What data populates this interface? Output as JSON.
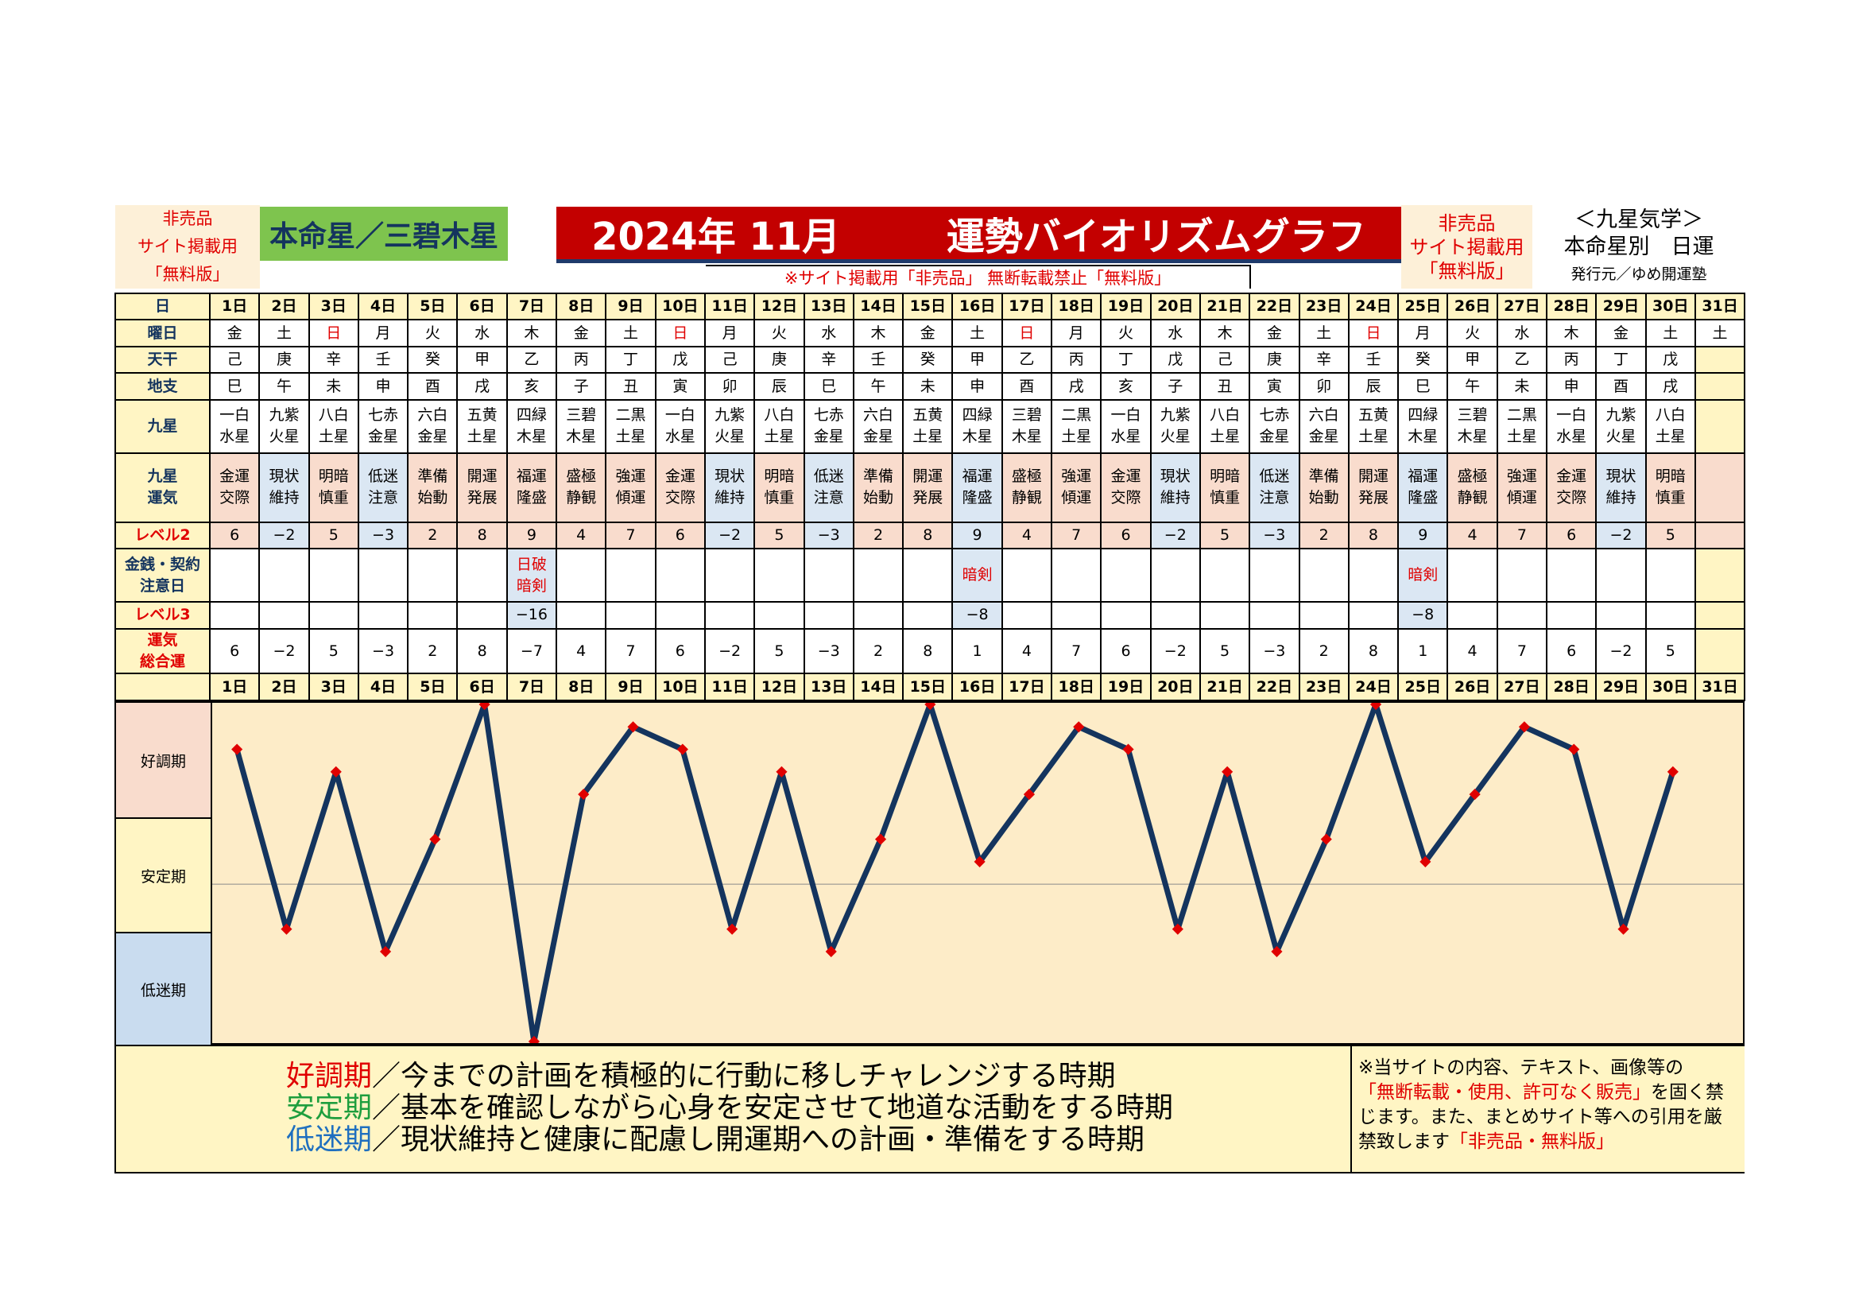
{
  "header": {
    "left_tag": [
      "非売品",
      "サイト掲載用",
      "「無料版」"
    ],
    "honmei": "本命星／三碧木星",
    "title": "2024年 11月        運勢バイオリズムグラフ",
    "notice": "※サイト掲載用「非売品」 無断転載禁止「無料版」",
    "right_tag": [
      "非売品",
      "サイト掲載用",
      "「無料版」"
    ],
    "kyusei": [
      "＜九星気学＞",
      "本命星別　日運",
      "発行元／ゆめ開運塾"
    ]
  },
  "row_labels": {
    "day": "日",
    "weekday": "曜日",
    "tenkan": "天干",
    "chishi": "地支",
    "star": "九星",
    "unki": "九星\n運気",
    "level2": "レベル2",
    "kinsen": "金銭・契約\n注意日",
    "level3": "レベル3",
    "sogo": "運気\n総合運"
  },
  "days": [
    "1日",
    "2日",
    "3日",
    "4日",
    "5日",
    "6日",
    "7日",
    "8日",
    "9日",
    "10日",
    "11日",
    "12日",
    "13日",
    "14日",
    "15日",
    "16日",
    "17日",
    "18日",
    "19日",
    "20日",
    "21日",
    "22日",
    "23日",
    "24日",
    "25日",
    "26日",
    "27日",
    "28日",
    "29日",
    "30日",
    "31日"
  ],
  "weekdays": [
    "金",
    "土",
    "日",
    "月",
    "火",
    "水",
    "木",
    "金",
    "土",
    "日",
    "月",
    "火",
    "水",
    "木",
    "金",
    "土",
    "日",
    "月",
    "火",
    "水",
    "木",
    "金",
    "土",
    "日",
    "月",
    "火",
    "水",
    "木",
    "金",
    "土",
    "土"
  ],
  "tenkan": [
    "己",
    "庚",
    "辛",
    "壬",
    "癸",
    "甲",
    "乙",
    "丙",
    "丁",
    "戊",
    "己",
    "庚",
    "辛",
    "壬",
    "癸",
    "甲",
    "乙",
    "丙",
    "丁",
    "戊",
    "己",
    "庚",
    "辛",
    "壬",
    "癸",
    "甲",
    "乙",
    "丙",
    "丁",
    "戊",
    ""
  ],
  "chishi": [
    "巳",
    "午",
    "未",
    "申",
    "酉",
    "戌",
    "亥",
    "子",
    "丑",
    "寅",
    "卯",
    "辰",
    "巳",
    "午",
    "未",
    "申",
    "酉",
    "戌",
    "亥",
    "子",
    "丑",
    "寅",
    "卯",
    "辰",
    "巳",
    "午",
    "未",
    "申",
    "酉",
    "戌",
    ""
  ],
  "stars": [
    "一白水星",
    "九紫火星",
    "八白土星",
    "七赤金星",
    "六白金星",
    "五黄土星",
    "四緑木星",
    "三碧木星",
    "二黒土星",
    "一白水星",
    "九紫火星",
    "八白土星",
    "七赤金星",
    "六白金星",
    "五黄土星",
    "四緑木星",
    "三碧木星",
    "二黒土星",
    "一白水星",
    "九紫火星",
    "八白土星",
    "七赤金星",
    "六白金星",
    "五黄土星",
    "四緑木星",
    "三碧木星",
    "二黒土星",
    "一白水星",
    "九紫火星",
    "八白土星",
    ""
  ],
  "unki": [
    "金運交際",
    "現状維持",
    "明暗慎重",
    "低迷注意",
    "準備始動",
    "開運発展",
    "福運隆盛",
    "盛極静観",
    "強運傾運",
    "金運交際",
    "現状維持",
    "明暗慎重",
    "低迷注意",
    "準備始動",
    "開運発展",
    "福運隆盛",
    "盛極静観",
    "強運傾運",
    "金運交際",
    "現状維持",
    "明暗慎重",
    "低迷注意",
    "準備始動",
    "開運発展",
    "福運隆盛",
    "盛極静観",
    "強運傾運",
    "金運交際",
    "現状維持",
    "明暗慎重",
    ""
  ],
  "level2": [
    "6",
    "−2",
    "5",
    "−3",
    "2",
    "8",
    "9",
    "4",
    "7",
    "6",
    "−2",
    "5",
    "−3",
    "2",
    "8",
    "9",
    "4",
    "7",
    "6",
    "−2",
    "5",
    "−3",
    "2",
    "8",
    "9",
    "4",
    "7",
    "6",
    "−2",
    "5",
    ""
  ],
  "kinsen": [
    "",
    "",
    "",
    "",
    "",
    "",
    "日破\n暗剣",
    "",
    "",
    "",
    "",
    "",
    "",
    "",
    "",
    "暗剣",
    "",
    "",
    "",
    "",
    "",
    "",
    "",
    "",
    "暗剣",
    "",
    "",
    "",
    "",
    "",
    ""
  ],
  "level3": [
    "",
    "",
    "",
    "",
    "",
    "",
    "−16",
    "",
    "",
    "",
    "",
    "",
    "",
    "",
    "",
    "−8",
    "",
    "",
    "",
    "",
    "",
    "",
    "",
    "",
    "−8",
    "",
    "",
    "",
    "",
    "",
    ""
  ],
  "sogo": [
    "6",
    "−2",
    "5",
    "−3",
    "2",
    "8",
    "−7",
    "4",
    "7",
    "6",
    "−2",
    "5",
    "−3",
    "2",
    "8",
    "1",
    "4",
    "7",
    "6",
    "−2",
    "5",
    "−3",
    "2",
    "8",
    "1",
    "4",
    "7",
    "6",
    "−2",
    "5",
    ""
  ],
  "zones": {
    "good": "好調期",
    "stable": "安定期",
    "low": "低迷期"
  },
  "legend": [
    {
      "term": "好調期",
      "color": "#e00000",
      "text": "／今までの計画を積極的に行動に移しチャレンジする時期"
    },
    {
      "term": "安定期",
      "color": "#1e9e3e",
      "text": "／基本を確認しながら心身を安定させて地道な活動をする時期"
    },
    {
      "term": "低迷期",
      "color": "#1f6fbf",
      "text": "／現状維持と健康に配慮し開運期への計画・準備をする時期"
    }
  ],
  "copyright": {
    "line1": "※当サイトの内容、テキスト、画像等の",
    "red1": "「無断転載・使用、許可なく販売」",
    "line2": "を固く禁じます。また、まとめサイト等への引用を厳禁致します",
    "red2": "「非売品・無料版」"
  },
  "chart_data": {
    "type": "line",
    "categories": [
      "1日",
      "2日",
      "3日",
      "4日",
      "5日",
      "6日",
      "7日",
      "8日",
      "9日",
      "10日",
      "11日",
      "12日",
      "13日",
      "14日",
      "15日",
      "16日",
      "17日",
      "18日",
      "19日",
      "20日",
      "21日",
      "22日",
      "23日",
      "24日",
      "25日",
      "26日",
      "27日",
      "28日",
      "29日",
      "30日"
    ],
    "values": [
      6,
      -2,
      5,
      -3,
      2,
      8,
      -7,
      4,
      7,
      6,
      -2,
      5,
      -3,
      2,
      8,
      1,
      4,
      7,
      6,
      -2,
      5,
      -3,
      2,
      8,
      1,
      4,
      7,
      6,
      -2,
      5
    ],
    "ylim": [
      -7,
      8
    ],
    "line_color": "#14345e",
    "marker_color": "#e00000",
    "background": "#fdecc8",
    "zone_colors": {
      "good": "#f9dccd",
      "stable": "#fff5c4",
      "low": "#c9dcef"
    }
  }
}
